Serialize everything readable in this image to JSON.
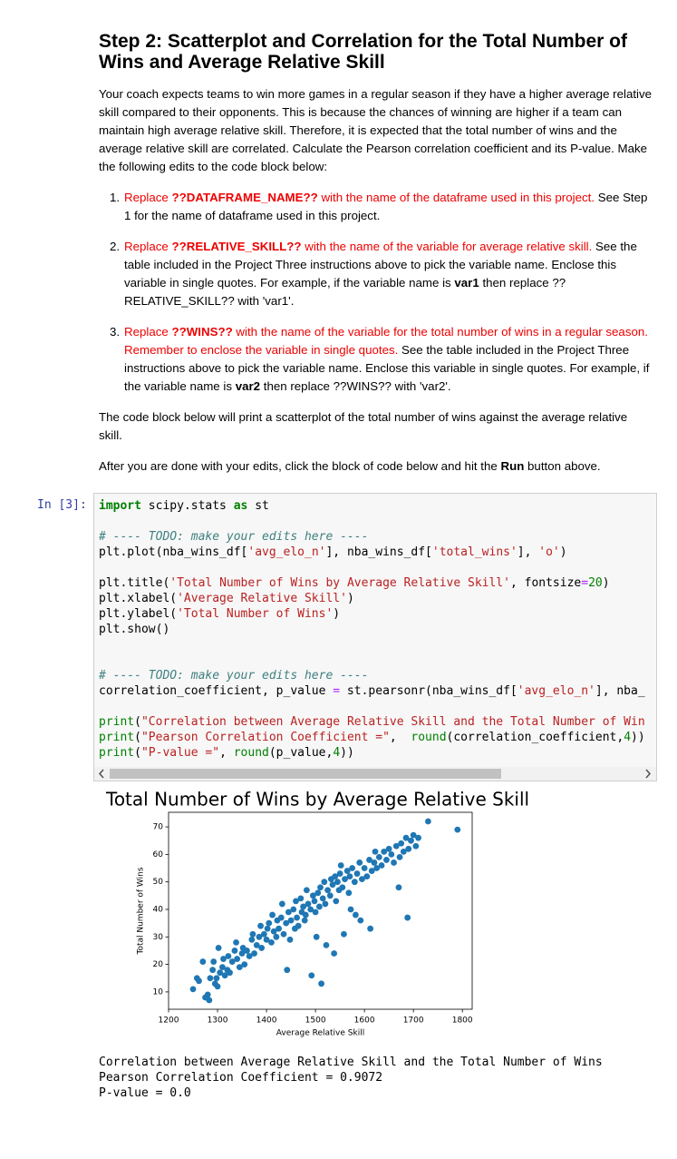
{
  "heading": "Step 2: Scatterplot and Correlation for the Total Number of Wins and Average Relative Skill",
  "intro": "Your coach expects teams to win more games in a regular season if they have a higher average relative skill compared to their opponents. This is because the chances of winning are higher if a team can maintain high average relative skill. Therefore, it is expected that the total number of wins and the average relative skill are correlated. Calculate the Pearson correlation coefficient and its P-value. Make the following edits to the code block below:",
  "steps": [
    [
      {
        "text": "Replace ",
        "color": "#e00"
      },
      {
        "text": "??DATAFRAME_NAME??",
        "color": "#e00",
        "bold": true
      },
      {
        "text": " with the name of the dataframe used in this project.",
        "color": "#e00"
      },
      {
        "text": " See Step 1 for the name of dataframe used in this project."
      }
    ],
    [
      {
        "text": "Replace ",
        "color": "#e00"
      },
      {
        "text": "??RELATIVE_SKILL??",
        "color": "#e00",
        "bold": true
      },
      {
        "text": " with the name of the variable for average relative skill.",
        "color": "#e00"
      },
      {
        "text": " See the table included in the Project Three instructions above to pick the variable name. Enclose this variable in single quotes. For example, if the variable name is "
      },
      {
        "text": "var1",
        "bold": true
      },
      {
        "text": " then replace ??RELATIVE_SKILL?? with 'var1'."
      }
    ],
    [
      {
        "text": "Replace ",
        "color": "#e00"
      },
      {
        "text": "??WINS??",
        "color": "#e00",
        "bold": true
      },
      {
        "text": " with the name of the variable for the total number of wins in a regular season. Remember to enclose the variable in single quotes.",
        "color": "#e00"
      },
      {
        "text": " See the table included in the Project Three instructions above to pick the variable name. Enclose this variable in single quotes. For example, if the variable name is "
      },
      {
        "text": "var2",
        "bold": true
      },
      {
        "text": " then replace ??WINS?? with 'var2'."
      }
    ]
  ],
  "para2": "The code block below will print a scatterplot of the total number of wins against the average relative skill.",
  "para3": [
    {
      "text": "After you are done with your edits, click the block of code below and hit the "
    },
    {
      "text": "Run",
      "bold": true
    },
    {
      "text": " button above."
    }
  ],
  "prompt": "In [3]:",
  "code": [
    [
      [
        {
          "text": "import",
          "color": "#008000",
          "bold": true
        },
        {
          "text": " scipy.stats "
        },
        {
          "text": "as",
          "color": "#008000",
          "bold": true
        },
        {
          "text": " st"
        }
      ]
    ],
    [
      [
        {
          "text": "# ---- TODO: make your edits here ----",
          "color": "#408080",
          "italic": true
        }
      ],
      [
        {
          "text": "plt.plot(nba_wins_df["
        },
        {
          "text": "'avg_elo_n'",
          "color": "#BA2121"
        },
        {
          "text": "], nba_wins_df["
        },
        {
          "text": "'total_wins'",
          "color": "#BA2121"
        },
        {
          "text": "], "
        },
        {
          "text": "'o'",
          "color": "#BA2121"
        },
        {
          "text": ")"
        }
      ]
    ],
    [
      [
        {
          "text": "plt.title("
        },
        {
          "text": "'Total Number of Wins by Average Relative Skill'",
          "color": "#BA2121"
        },
        {
          "text": ", fontsize"
        },
        {
          "text": "=",
          "color": "#AA22FF"
        },
        {
          "text": "20",
          "color": "#008000"
        },
        {
          "text": ")"
        }
      ],
      [
        {
          "text": "plt.xlabel("
        },
        {
          "text": "'Average Relative Skill'",
          "color": "#BA2121"
        },
        {
          "text": ")"
        }
      ],
      [
        {
          "text": "plt.ylabel("
        },
        {
          "text": "'Total Number of Wins'",
          "color": "#BA2121"
        },
        {
          "text": ")"
        }
      ],
      [
        {
          "text": "plt.show()"
        }
      ]
    ],
    [
      [
        {
          "text": "# ---- TODO: make your edits here ----",
          "color": "#408080",
          "italic": true
        }
      ],
      [
        {
          "text": "correlation_coefficient, p_value "
        },
        {
          "text": "=",
          "color": "#AA22FF"
        },
        {
          "text": " st.pearsonr(nba_wins_df["
        },
        {
          "text": "'avg_elo_n'",
          "color": "#BA2121"
        },
        {
          "text": "], nba_"
        }
      ]
    ],
    [
      [
        {
          "text": "print",
          "color": "#008000"
        },
        {
          "text": "("
        },
        {
          "text": "\"Correlation between Average Relative Skill and the Total Number of Win",
          "color": "#BA2121"
        }
      ],
      [
        {
          "text": "print",
          "color": "#008000"
        },
        {
          "text": "("
        },
        {
          "text": "\"Pearson Correlation Coefficient =\"",
          "color": "#BA2121"
        },
        {
          "text": ",  "
        },
        {
          "text": "round",
          "color": "#008000"
        },
        {
          "text": "(correlation_coefficient,"
        },
        {
          "text": "4",
          "color": "#008000"
        },
        {
          "text": "))"
        }
      ],
      [
        {
          "text": "print",
          "color": "#008000"
        },
        {
          "text": "("
        },
        {
          "text": "\"P-value =\"",
          "color": "#BA2121"
        },
        {
          "text": ", "
        },
        {
          "text": "round",
          "color": "#008000"
        },
        {
          "text": "(p_value,"
        },
        {
          "text": "4",
          "color": "#008000"
        },
        {
          "text": "))"
        }
      ]
    ]
  ],
  "chart_data": {
    "type": "scatter",
    "title": "Total Number of Wins by Average Relative Skill",
    "xlabel": "Average Relative Skill",
    "ylabel": "Total Number of Wins",
    "color": "#1f77b4",
    "xlim": [
      1200,
      1820
    ],
    "ylim": [
      3.7,
      75.3
    ],
    "xticks": [
      1200,
      1300,
      1400,
      1500,
      1600,
      1700,
      1800
    ],
    "yticks": [
      10,
      20,
      30,
      40,
      50,
      60,
      70
    ],
    "x": [
      1250,
      1258,
      1262,
      1270,
      1275,
      1280,
      1283,
      1285,
      1290,
      1292,
      1295,
      1298,
      1300,
      1302,
      1305,
      1310,
      1312,
      1315,
      1320,
      1322,
      1325,
      1330,
      1335,
      1338,
      1340,
      1345,
      1350,
      1352,
      1355,
      1360,
      1365,
      1370,
      1372,
      1375,
      1380,
      1385,
      1388,
      1390,
      1395,
      1400,
      1402,
      1405,
      1410,
      1412,
      1415,
      1420,
      1422,
      1425,
      1430,
      1432,
      1435,
      1440,
      1442,
      1445,
      1448,
      1450,
      1455,
      1458,
      1460,
      1462,
      1465,
      1470,
      1472,
      1475,
      1478,
      1480,
      1482,
      1485,
      1490,
      1492,
      1495,
      1498,
      1500,
      1502,
      1505,
      1508,
      1510,
      1512,
      1515,
      1518,
      1520,
      1522,
      1525,
      1530,
      1532,
      1535,
      1538,
      1540,
      1542,
      1545,
      1548,
      1550,
      1552,
      1555,
      1558,
      1560,
      1565,
      1568,
      1570,
      1572,
      1575,
      1580,
      1582,
      1585,
      1590,
      1592,
      1595,
      1600,
      1605,
      1610,
      1612,
      1615,
      1620,
      1622,
      1625,
      1630,
      1635,
      1640,
      1645,
      1650,
      1655,
      1660,
      1665,
      1670,
      1672,
      1675,
      1680,
      1685,
      1688,
      1690,
      1695,
      1700,
      1705,
      1710,
      1730,
      1790
    ],
    "y": [
      11,
      15,
      14,
      21,
      8,
      9,
      7,
      15,
      18,
      21,
      13,
      15,
      12,
      26,
      17,
      19,
      22,
      16,
      18,
      23,
      17,
      21,
      25,
      28,
      22,
      19,
      24,
      26,
      20,
      25,
      23,
      29,
      31,
      24,
      27,
      30,
      34,
      26,
      31,
      29,
      33,
      35,
      28,
      38,
      32,
      30,
      36,
      33,
      37,
      42,
      31,
      35,
      18,
      39,
      29,
      36,
      40,
      33,
      43,
      37,
      34,
      44,
      39,
      41,
      36,
      38,
      47,
      42,
      40,
      16,
      45,
      43,
      39,
      30,
      46,
      41,
      48,
      13,
      44,
      50,
      42,
      27,
      47,
      45,
      51,
      49,
      24,
      52,
      43,
      50,
      47,
      53,
      56,
      48,
      31,
      51,
      54,
      46,
      52,
      40,
      55,
      50,
      38,
      53,
      57,
      36,
      51,
      55,
      52,
      58,
      33,
      54,
      57,
      61,
      55,
      59,
      56,
      61,
      58,
      62,
      60,
      57,
      63,
      48,
      59,
      64,
      61,
      66,
      37,
      62,
      65,
      67,
      63,
      66,
      72,
      69
    ]
  },
  "output": [
    "Correlation between Average Relative Skill and the Total Number of Wins",
    "Pearson Correlation Coefficient = 0.9072",
    "P-value = 0.0"
  ]
}
